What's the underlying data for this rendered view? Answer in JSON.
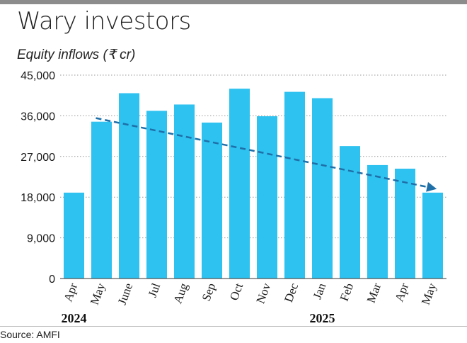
{
  "header": {
    "title": "Wary investors",
    "subtitle": "Equity inflows (₹ cr)"
  },
  "footer": {
    "source": "Source: AMFI"
  },
  "colors": {
    "bar": "#2ec2f0",
    "trend": "#1f6fa8",
    "grid": "#9a9a9a",
    "topbar": "#8c8c8c"
  },
  "chart_data": {
    "type": "bar",
    "title": "Wary investors",
    "subtitle": "Equity inflows (₹ cr)",
    "xlabel": "",
    "ylabel": "",
    "categories": [
      "Apr",
      "May",
      "June",
      "Jul",
      "Aug",
      "Sep",
      "Oct",
      "Nov",
      "Dec",
      "Jan",
      "Feb",
      "Mar",
      "Apr",
      "May"
    ],
    "values": [
      19000,
      34700,
      41000,
      37100,
      38500,
      34500,
      42000,
      35900,
      41300,
      39900,
      29300,
      25100,
      24300,
      19000
    ],
    "year_labels": [
      {
        "label": "2024",
        "category_index": 0
      },
      {
        "label": "2025",
        "category_index": 9
      }
    ],
    "ylim": [
      0,
      45000
    ],
    "yticks": [
      0,
      9000,
      18000,
      27000,
      36000,
      45000
    ],
    "ytick_labels": [
      "0",
      "9,000",
      "18,000",
      "27,000",
      "36,000",
      "45,000"
    ],
    "grid": true,
    "grid_style": "dotted horizontal",
    "trendline": {
      "from_index": 1,
      "to_index": 13,
      "start_value": 35500,
      "end_value": 20200,
      "style": "dashed with arrow"
    },
    "legend": "none"
  }
}
